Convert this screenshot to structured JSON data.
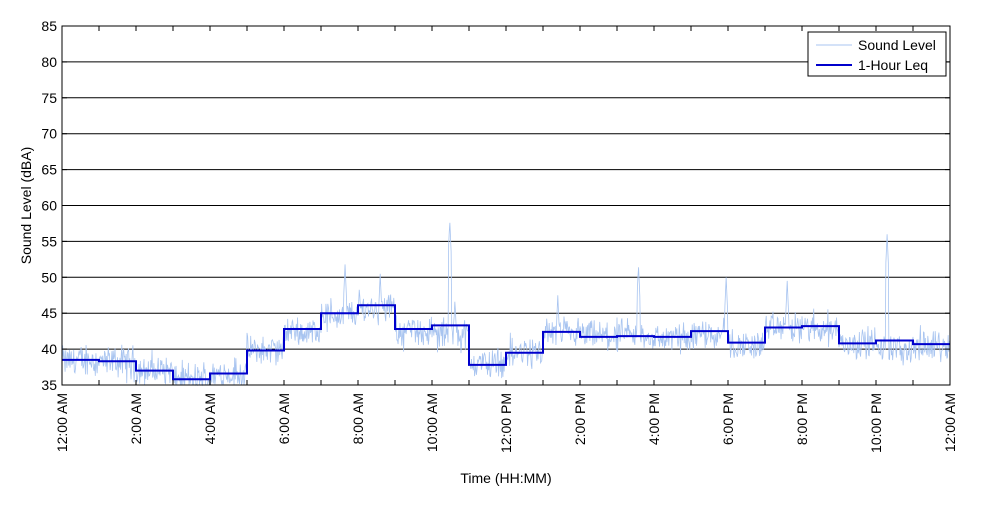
{
  "chart_data": {
    "type": "line",
    "xlabel": "Time (HH:MM)",
    "ylabel": "Sound Level (dBA)",
    "ylim": [
      35,
      85
    ],
    "yticks": [
      35,
      40,
      45,
      50,
      55,
      60,
      65,
      70,
      75,
      80,
      85
    ],
    "xlim": [
      "12:00 AM",
      "12:00 AM"
    ],
    "xticks": [
      {
        "hour": 0,
        "label": "12:00 AM"
      },
      {
        "hour": 2,
        "label": "2:00 AM"
      },
      {
        "hour": 4,
        "label": "4:00 AM"
      },
      {
        "hour": 6,
        "label": "6:00 AM"
      },
      {
        "hour": 8,
        "label": "8:00 AM"
      },
      {
        "hour": 10,
        "label": "10:00 AM"
      },
      {
        "hour": 12,
        "label": "12:00 PM"
      },
      {
        "hour": 14,
        "label": "2:00 PM"
      },
      {
        "hour": 16,
        "label": "4:00 PM"
      },
      {
        "hour": 18,
        "label": "6:00 PM"
      },
      {
        "hour": 20,
        "label": "8:00 PM"
      },
      {
        "hour": 22,
        "label": "10:00 PM"
      },
      {
        "hour": 24,
        "label": "12:00 AM"
      }
    ],
    "grid": "horizontal",
    "legend_position": "top-right",
    "series": [
      {
        "name": "Sound Level",
        "color": "#a8c4f0",
        "style": "thin-line",
        "hourly_base": [
          38.5,
          38.2,
          37.0,
          35.8,
          36.5,
          39.8,
          42.5,
          44.8,
          45.8,
          42.5,
          42.0,
          38.0,
          39.5,
          42.2,
          41.8,
          41.8,
          41.5,
          42.3,
          40.5,
          42.8,
          43.0,
          40.8,
          40.0,
          40.5
        ],
        "peaks": [
          {
            "hour": 10.48,
            "value": 58
          },
          {
            "hour": 22.3,
            "value": 56
          },
          {
            "hour": 15.58,
            "value": 51.8
          },
          {
            "hour": 7.65,
            "value": 51.8
          },
          {
            "hour": 17.95,
            "value": 50
          },
          {
            "hour": 8.6,
            "value": 50.5
          },
          {
            "hour": 19.6,
            "value": 49.5
          },
          {
            "hour": 13.4,
            "value": 47.5
          },
          {
            "hour": 10.62,
            "value": 47
          }
        ]
      },
      {
        "name": "1-Hour Leq",
        "color": "#0000cc",
        "style": "step",
        "values": [
          38.5,
          38.3,
          37.0,
          35.8,
          36.6,
          39.8,
          42.8,
          45.0,
          46.1,
          42.8,
          43.3,
          37.8,
          39.5,
          42.4,
          41.7,
          41.8,
          41.7,
          42.5,
          40.9,
          43.0,
          43.2,
          40.8,
          41.2,
          40.7
        ]
      }
    ]
  }
}
